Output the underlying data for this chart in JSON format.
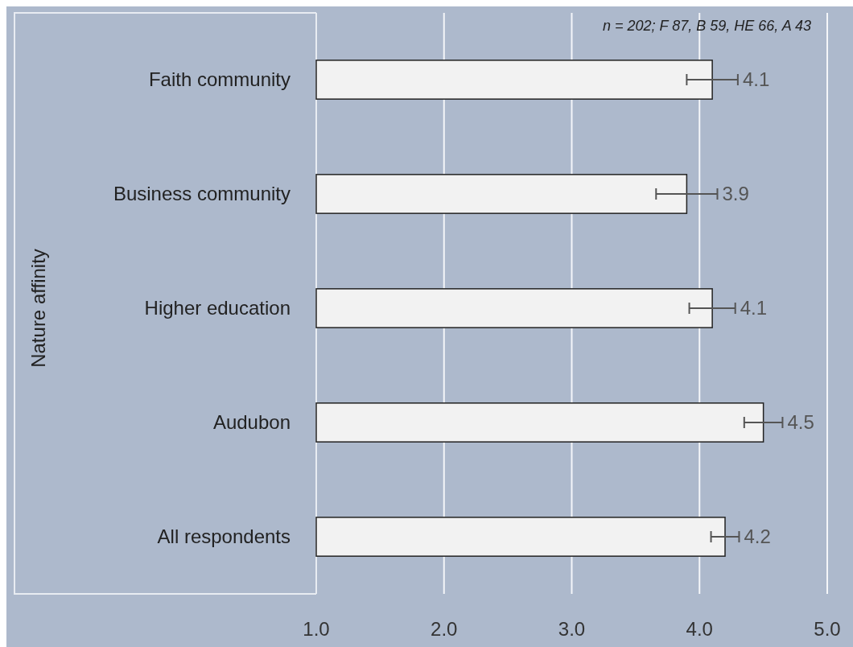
{
  "chart_data": {
    "type": "bar",
    "orientation": "horizontal",
    "ylabel": "Nature affinity",
    "categories": [
      "Faith community",
      "Business community",
      "Higher education",
      "Audubon",
      "All respondents"
    ],
    "values": [
      4.1,
      3.9,
      4.1,
      4.5,
      4.2
    ],
    "errors": [
      0.2,
      0.24,
      0.18,
      0.15,
      0.11
    ],
    "color": "#f2f2f2",
    "data_labels": true,
    "xlim": [
      1,
      5
    ],
    "xticks": [
      {
        "value": 1,
        "label": "1.0"
      },
      {
        "value": 2,
        "label": "2.0"
      },
      {
        "value": 3,
        "label": "3.0"
      },
      {
        "value": 4,
        "label": "4.0"
      },
      {
        "value": 5,
        "label": "5.0"
      }
    ],
    "grid": "x",
    "annotations": [
      "n = 202; F 87, B 59, HE 66, A 43"
    ]
  }
}
